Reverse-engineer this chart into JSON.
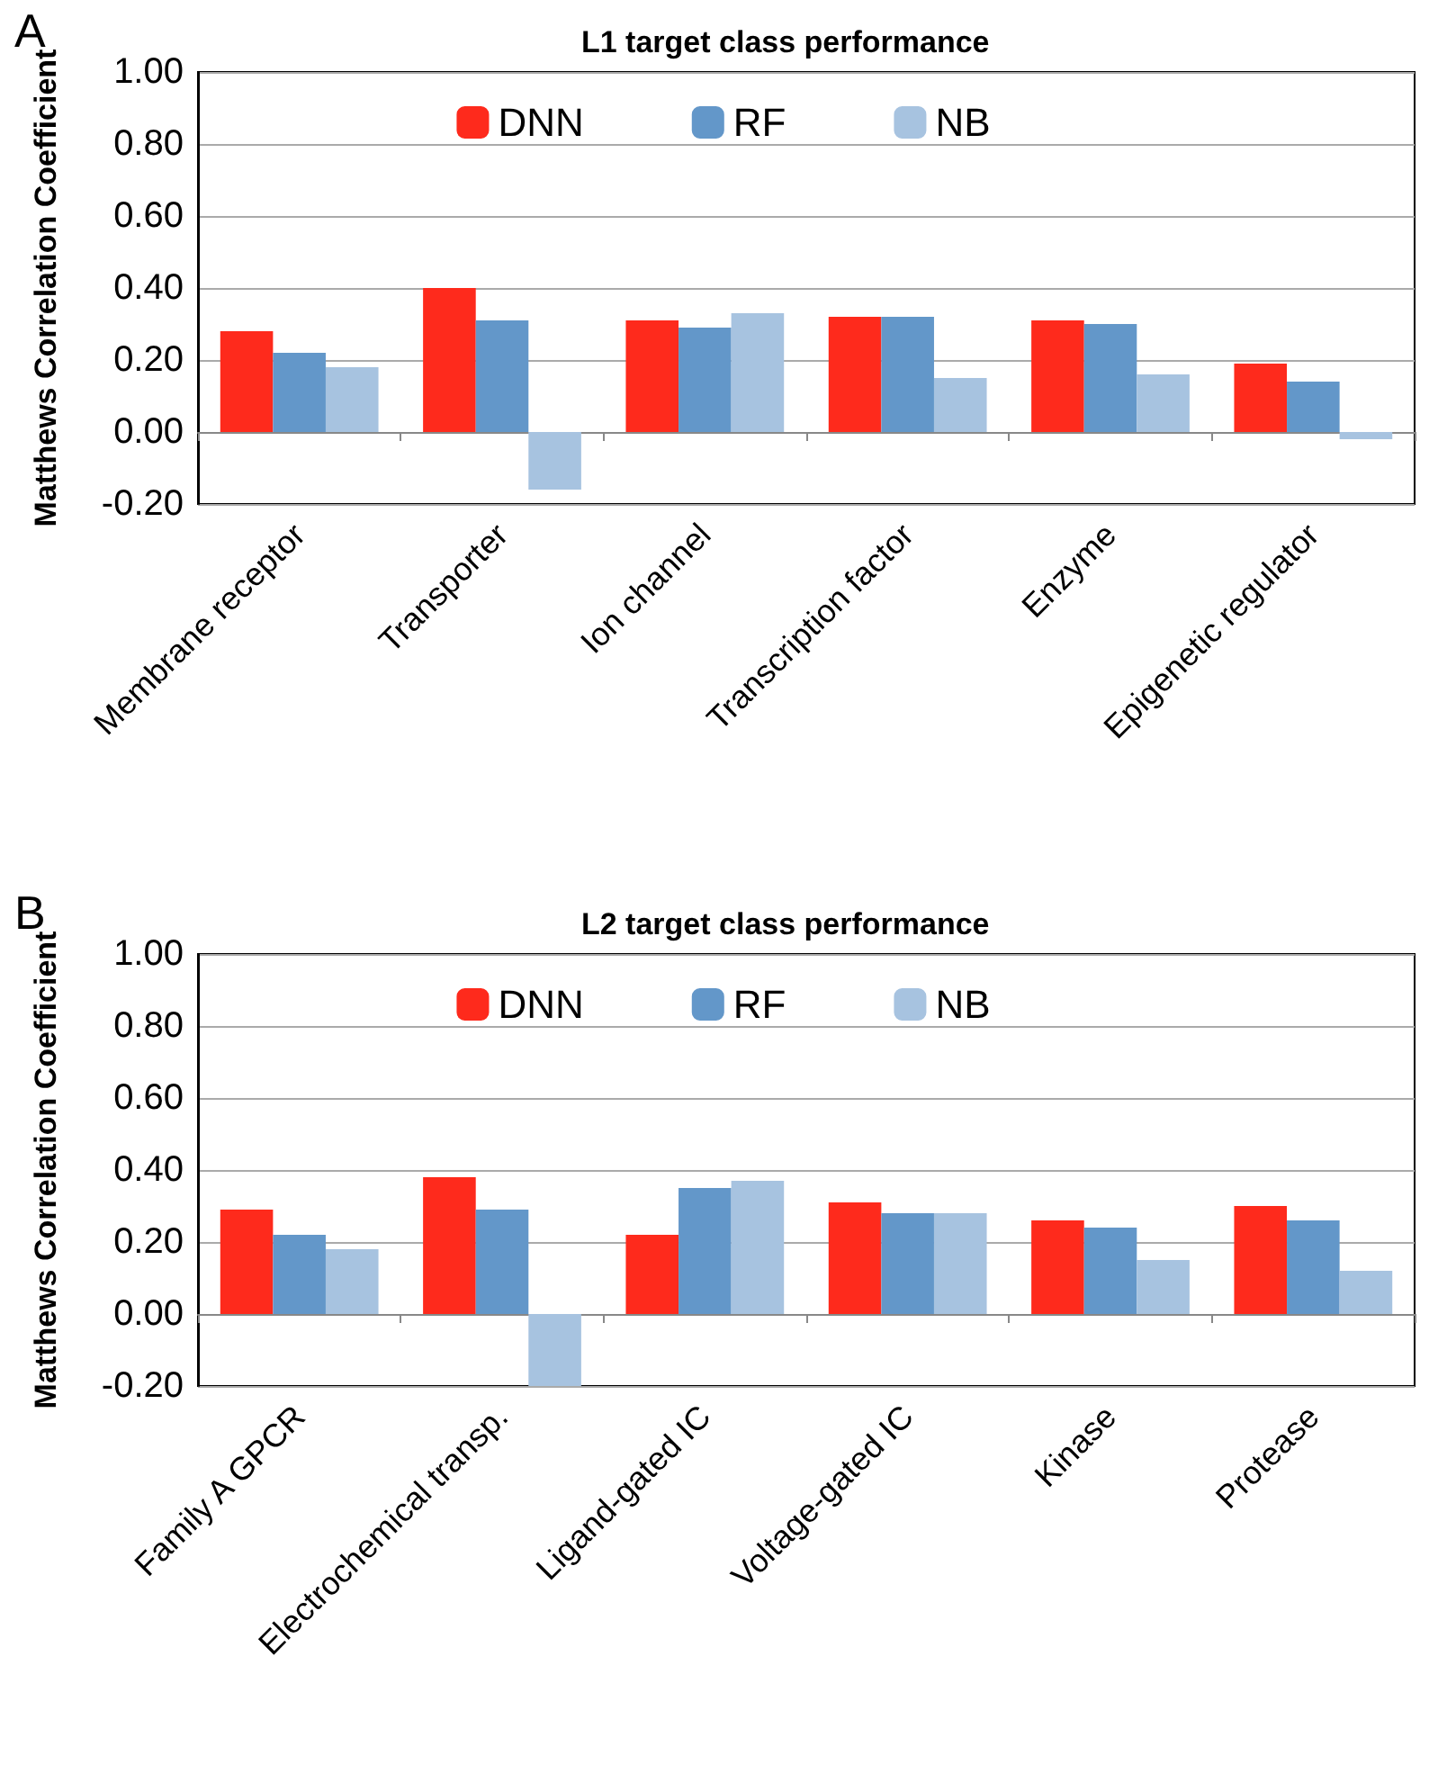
{
  "chart_data": [
    {
      "type": "bar",
      "title": "L1 target class performance",
      "ylabel": "Matthews Correlation Coefficient",
      "annotations": [
        "A"
      ],
      "categories": [
        "Membrane receptor",
        "Transporter",
        "Ion channel",
        "Transcription factor",
        "Enzyme",
        "Epigenetic regulator"
      ],
      "series": [
        {
          "name": "DNN",
          "color": "#fe2a1c",
          "values": [
            0.28,
            0.4,
            0.31,
            0.32,
            0.31,
            0.19
          ]
        },
        {
          "name": "RF",
          "color": "#6397c9",
          "values": [
            0.22,
            0.31,
            0.29,
            0.32,
            0.3,
            0.14
          ]
        },
        {
          "name": "NB",
          "color": "#a7c3e0",
          "values": [
            0.18,
            -0.16,
            0.33,
            0.15,
            0.16,
            -0.02
          ]
        }
      ],
      "ylim": [
        -0.2,
        1.0
      ],
      "yticks": [
        {
          "value": -0.2,
          "label": "-0.20"
        },
        {
          "value": 0,
          "label": "0.00"
        },
        {
          "value": 0.2,
          "label": "0.20"
        },
        {
          "value": 0.4,
          "label": "0.40"
        },
        {
          "value": 0.6,
          "label": "0.60"
        },
        {
          "value": 0.8,
          "label": "0.80"
        },
        {
          "value": 1.0,
          "label": "1.00"
        }
      ],
      "grid": "y",
      "legend": "top"
    },
    {
      "type": "bar",
      "title": "L2 target class performance",
      "ylabel": "Matthews Correlation Coefficient",
      "annotations": [
        "B"
      ],
      "categories": [
        "Family A GPCR",
        "Electrochemical transp.",
        "Ligand-gated IC",
        "Voltage-gated IC",
        "Kinase",
        "Protease"
      ],
      "series": [
        {
          "name": "DNN",
          "color": "#fe2a1c",
          "values": [
            0.29,
            0.38,
            0.22,
            0.31,
            0.26,
            0.3
          ]
        },
        {
          "name": "RF",
          "color": "#6397c9",
          "values": [
            0.22,
            0.29,
            0.35,
            0.28,
            0.24,
            0.26
          ]
        },
        {
          "name": "NB",
          "color": "#a7c3e0",
          "values": [
            0.18,
            -0.2,
            0.37,
            0.28,
            0.15,
            0.12
          ]
        }
      ],
      "ylim": [
        -0.2,
        1.0
      ],
      "yticks": [
        {
          "value": -0.2,
          "label": "-0.20"
        },
        {
          "value": 0,
          "label": "0.00"
        },
        {
          "value": 0.2,
          "label": "0.20"
        },
        {
          "value": 0.4,
          "label": "0.40"
        },
        {
          "value": 0.6,
          "label": "0.60"
        },
        {
          "value": 0.8,
          "label": "0.80"
        },
        {
          "value": 1.0,
          "label": "1.00"
        }
      ],
      "grid": "y",
      "legend": "top"
    }
  ]
}
